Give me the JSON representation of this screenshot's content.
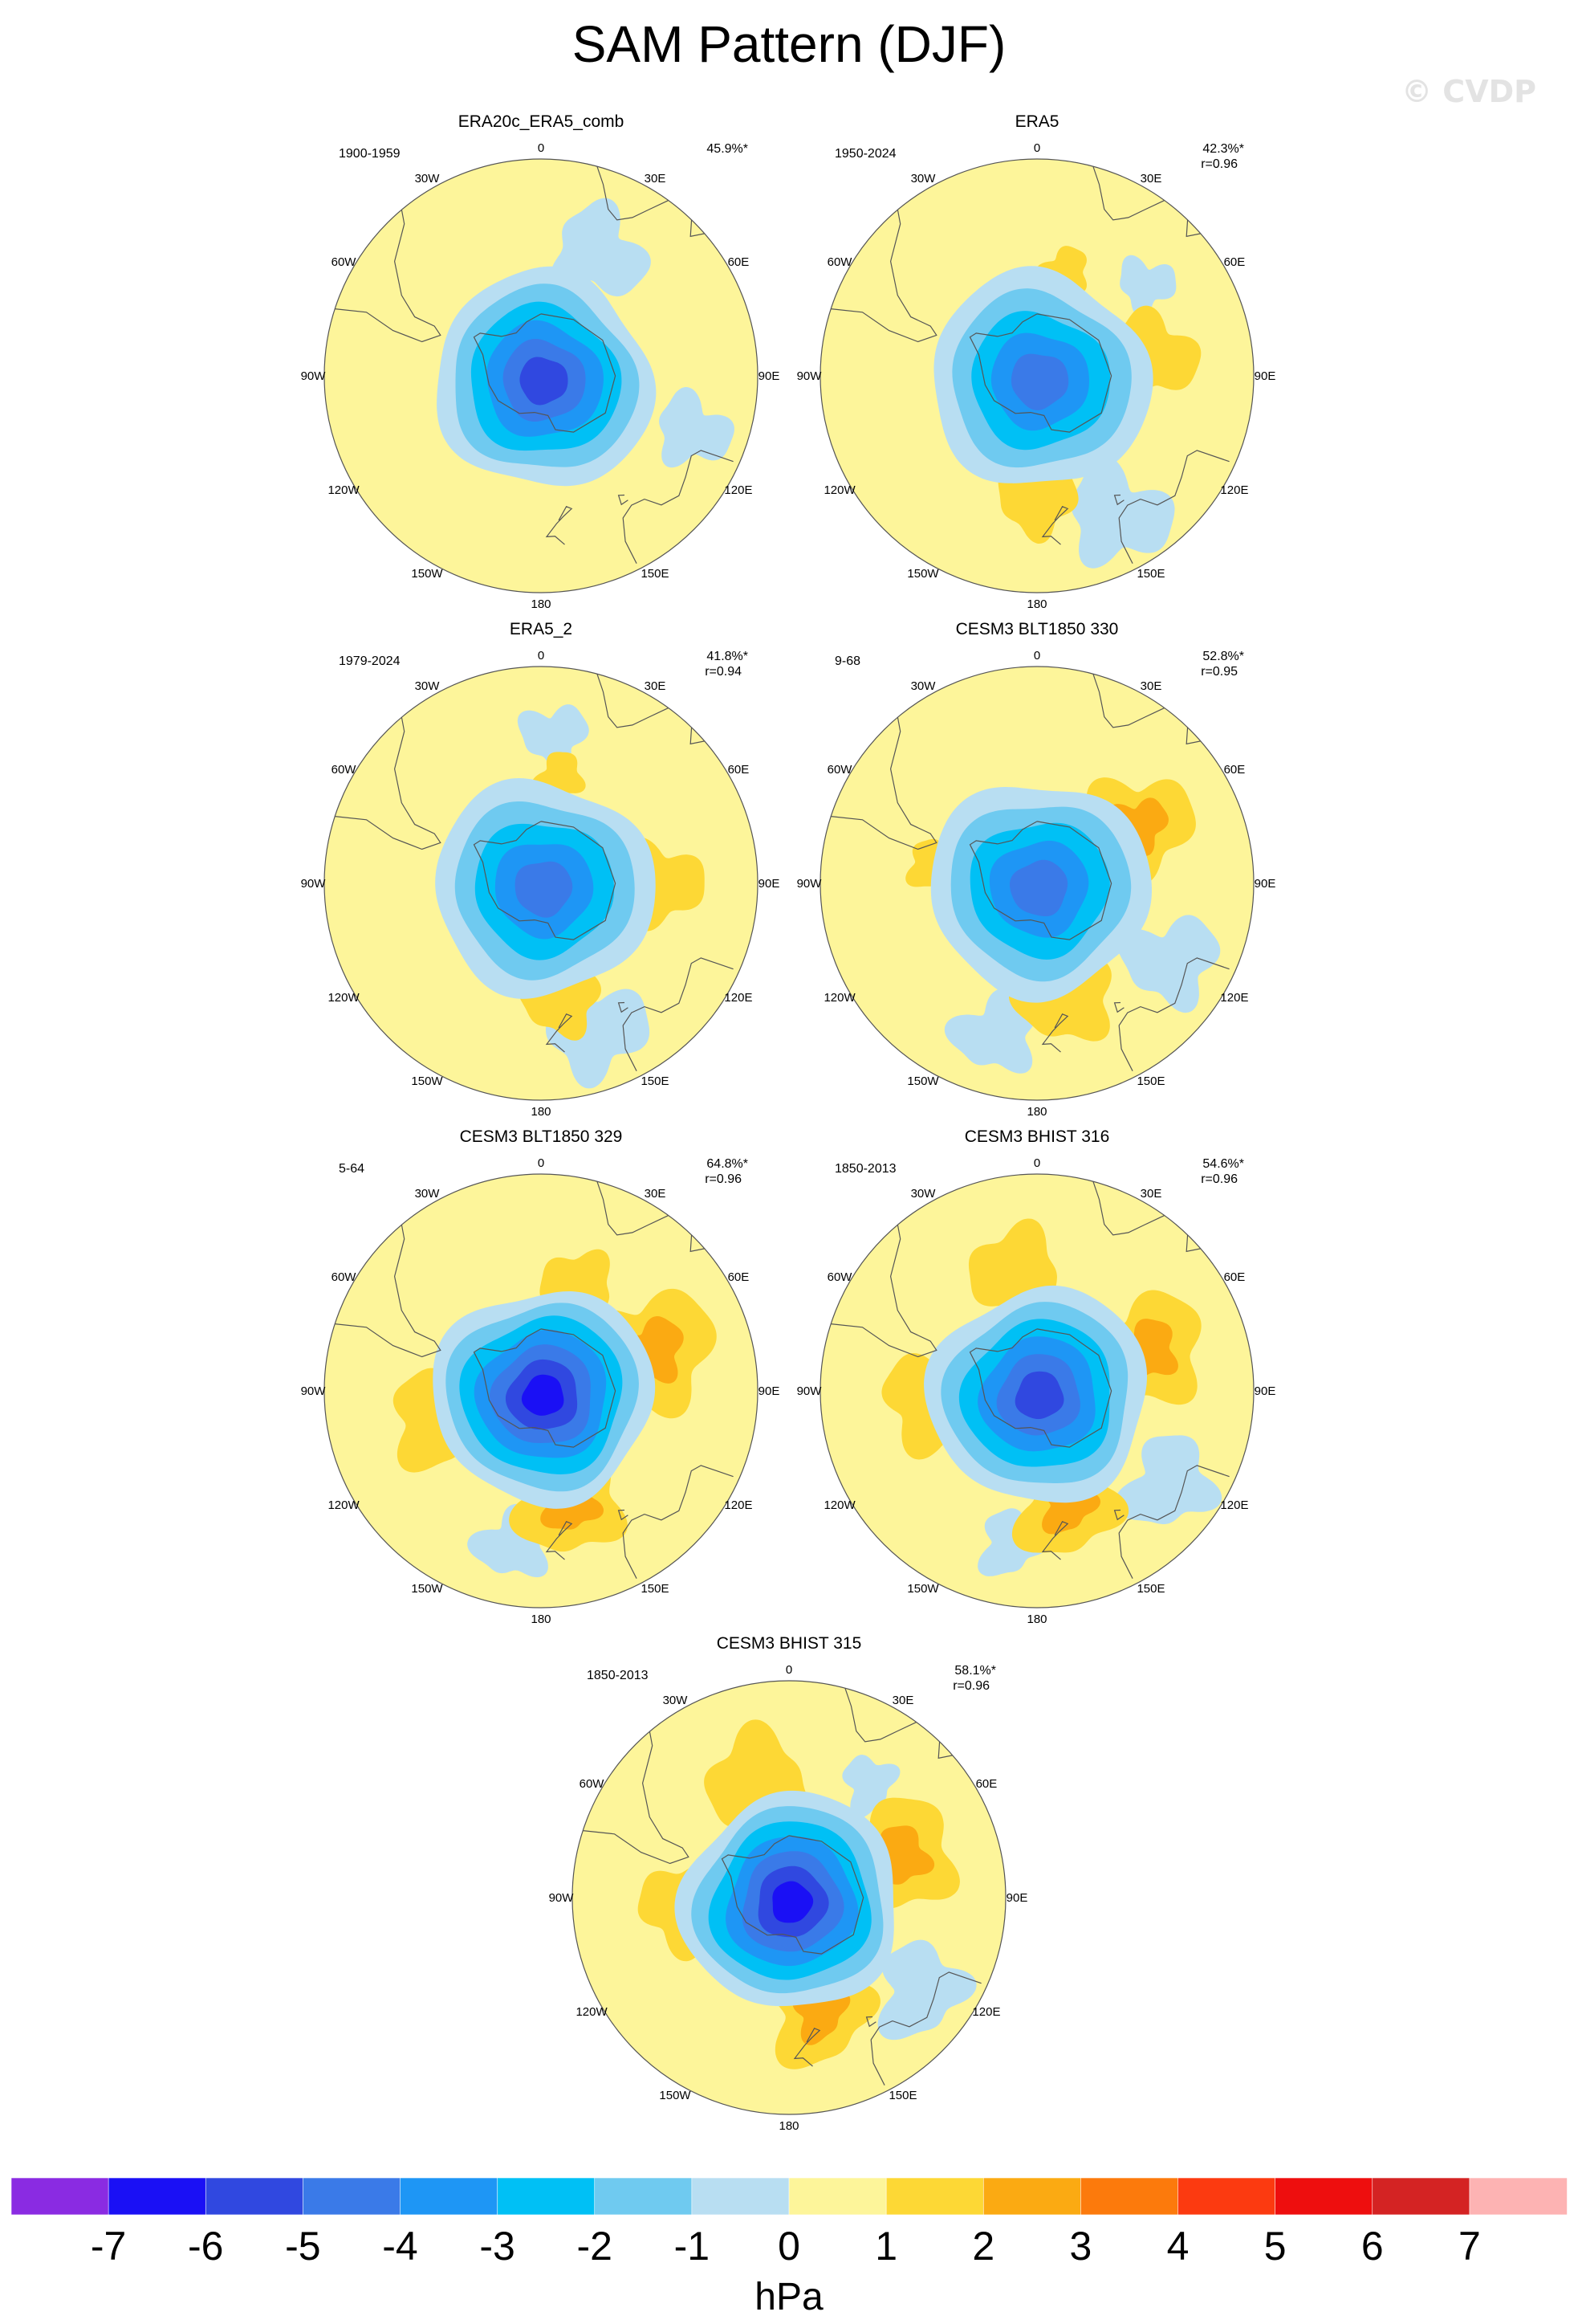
{
  "title": "SAM Pattern (DJF)",
  "watermark": "© CVDP",
  "units": "hPa",
  "longitude_labels": [
    "0",
    "30E",
    "60E",
    "90E",
    "120E",
    "150E",
    "180",
    "150W",
    "120W",
    "90W",
    "60W",
    "30W"
  ],
  "palette": {
    "-7": "#8a2be2",
    "-6": "#1a10f5",
    "-5": "#3048e0",
    "-4": "#3a7ae8",
    "-3": "#1e96f5",
    "-2": "#00c0f5",
    "-1": "#6fcaf0",
    "0": "#b8def2",
    "1": "#fdf59a",
    "2": "#fdd835",
    "3": "#fbaa12",
    "4": "#fc7a0c",
    "5": "#fc3a10",
    "6": "#ee0e0e",
    "7": "#d42323",
    "8": "#fdb3b3"
  },
  "chart_data": {
    "type": "polar-contour-maps",
    "title": "SAM Pattern (DJF)",
    "colorbar": {
      "label": "hPa",
      "ticks": [
        "-7",
        "-6",
        "-5",
        "-4",
        "-3",
        "-2",
        "-1",
        "0",
        "1",
        "2",
        "3",
        "4",
        "5",
        "6",
        "7"
      ],
      "colors": [
        "#8a2be2",
        "#1a10f5",
        "#3048e0",
        "#3a7ae8",
        "#1e96f5",
        "#00c0f5",
        "#6fcaf0",
        "#b8def2",
        "#fdf59a",
        "#fdd835",
        "#fbaa12",
        "#fc7a0c",
        "#fc3a10",
        "#ee0e0e",
        "#d42323",
        "#fdb3b3"
      ]
    },
    "panels": [
      {
        "name": "ERA20c_ERA5_comb",
        "period": "1900-1959",
        "pct": "45.9%*",
        "r": "",
        "center_min": -5,
        "neg_lobes": [
          {
            "lon": 25,
            "lat": -46,
            "r": 0.1
          },
          {
            "lon": 110,
            "lat": -38,
            "r": 0.08
          }
        ],
        "pos_lobes": []
      },
      {
        "name": "ERA5",
        "period": "1950-2024",
        "pct": "42.3%*",
        "r": "r=0.96",
        "center_min": -4,
        "neg_lobes": [
          {
            "lon": 150,
            "lat": -38,
            "r": 0.11
          },
          {
            "lon": 50,
            "lat": -44,
            "r": 0.06
          }
        ],
        "pos_lobes": [
          {
            "lon": 80,
            "lat": -52,
            "r": 0.09,
            "max": 2
          },
          {
            "lon": 180,
            "lat": -50,
            "r": 0.08,
            "max": 2
          },
          {
            "lon": 15,
            "lat": -55,
            "r": 0.05,
            "max": 2
          }
        ]
      },
      {
        "name": "ERA5_2",
        "period": "1979-2024",
        "pct": "41.8%*",
        "r": "r=0.94",
        "center_min": -4,
        "neg_lobes": [
          {
            "lon": 160,
            "lat": -40,
            "r": 0.11
          },
          {
            "lon": 5,
            "lat": -42,
            "r": 0.07
          }
        ],
        "pos_lobes": [
          {
            "lon": 90,
            "lat": -52,
            "r": 0.09,
            "max": 2
          },
          {
            "lon": 170,
            "lat": -52,
            "r": 0.08,
            "max": 2
          },
          {
            "lon": 10,
            "lat": -55,
            "r": 0.05,
            "max": 2
          }
        ]
      },
      {
        "name": "CESM3 BLT1850 330",
        "period": "9-68",
        "pct": "52.8%*",
        "r": "r=0.95",
        "center_min": -4,
        "neg_lobes": [
          {
            "lon": 120,
            "lat": -40,
            "r": 0.1
          },
          {
            "lon": 195,
            "lat": -40,
            "r": 0.09
          }
        ],
        "pos_lobes": [
          {
            "lon": 60,
            "lat": -52,
            "r": 0.11,
            "max": 3
          },
          {
            "lon": 165,
            "lat": -52,
            "r": 0.1,
            "max": 2
          },
          {
            "lon": 280,
            "lat": -55,
            "r": 0.05,
            "max": 2
          }
        ]
      },
      {
        "name": "CESM3 BLT1850 329",
        "period": "5-64",
        "pct": "64.8%*",
        "r": "r=0.96",
        "center_min": -6,
        "neg_lobes": [
          {
            "lon": 190,
            "lat": -40,
            "r": 0.08
          }
        ],
        "pos_lobes": [
          {
            "lon": 70,
            "lat": -52,
            "r": 0.13,
            "max": 3
          },
          {
            "lon": 165,
            "lat": -52,
            "r": 0.11,
            "max": 3
          },
          {
            "lon": 255,
            "lat": -55,
            "r": 0.1,
            "max": 2
          },
          {
            "lon": 20,
            "lat": -55,
            "r": 0.08,
            "max": 2
          }
        ]
      },
      {
        "name": "CESM3 BHIST 316",
        "period": "1850-2013",
        "pct": "54.6%*",
        "r": "r=0.96",
        "center_min": -5,
        "neg_lobes": [
          {
            "lon": 125,
            "lat": -38,
            "r": 0.1
          },
          {
            "lon": 190,
            "lat": -40,
            "r": 0.07
          }
        ],
        "pos_lobes": [
          {
            "lon": 70,
            "lat": -52,
            "r": 0.12,
            "max": 3
          },
          {
            "lon": 165,
            "lat": -52,
            "r": 0.11,
            "max": 3
          },
          {
            "lon": 265,
            "lat": -55,
            "r": 0.1,
            "max": 2
          },
          {
            "lon": 350,
            "lat": -52,
            "r": 0.1,
            "max": 2
          }
        ]
      },
      {
        "name": "CESM3 BHIST 315",
        "period": "1850-2013",
        "pct": "58.1%*",
        "r": "r=0.96",
        "center_min": -6,
        "neg_lobes": [
          {
            "lon": 125,
            "lat": -38,
            "r": 0.1
          },
          {
            "lon": 35,
            "lat": -45,
            "r": 0.06
          }
        ],
        "pos_lobes": [
          {
            "lon": 70,
            "lat": -52,
            "r": 0.12,
            "max": 3
          },
          {
            "lon": 165,
            "lat": -52,
            "r": 0.11,
            "max": 3
          },
          {
            "lon": 265,
            "lat": -55,
            "r": 0.09,
            "max": 2
          },
          {
            "lon": 345,
            "lat": -52,
            "r": 0.11,
            "max": 2
          }
        ]
      }
    ]
  }
}
